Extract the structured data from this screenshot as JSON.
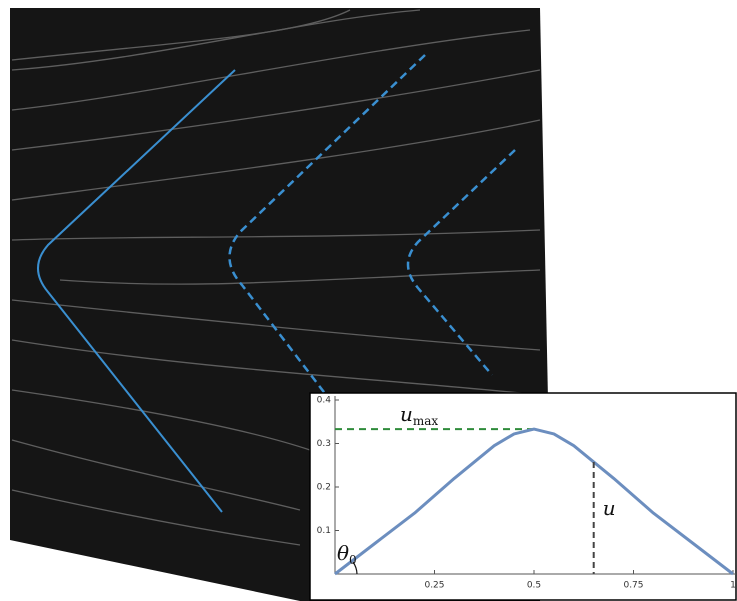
{
  "chart_data": {
    "type": "line",
    "x": [
      0,
      0.1,
      0.2,
      0.3,
      0.4,
      0.45,
      0.5,
      0.55,
      0.6,
      0.7,
      0.8,
      0.9,
      1
    ],
    "series": [
      {
        "color": "#6c8ebf",
        "values": [
          0,
          0.07,
          0.14,
          0.22,
          0.295,
          0.322,
          0.333,
          0.322,
          0.295,
          0.22,
          0.14,
          0.07,
          0
        ]
      }
    ],
    "xlim": [
      0,
      1
    ],
    "ylim": [
      0,
      0.4
    ],
    "xticks": [
      0.25,
      0.5,
      0.75,
      1
    ],
    "yticks": [
      0.1,
      0.2,
      0.3,
      0.4
    ],
    "annotations": {
      "u_max": {
        "text": "u",
        "subscript": "max",
        "value": 0.333,
        "color": "#2e8b3a"
      },
      "u": {
        "text": "u",
        "x": 0.65
      },
      "theta": {
        "text": "θ",
        "subscript": "0"
      }
    }
  }
}
